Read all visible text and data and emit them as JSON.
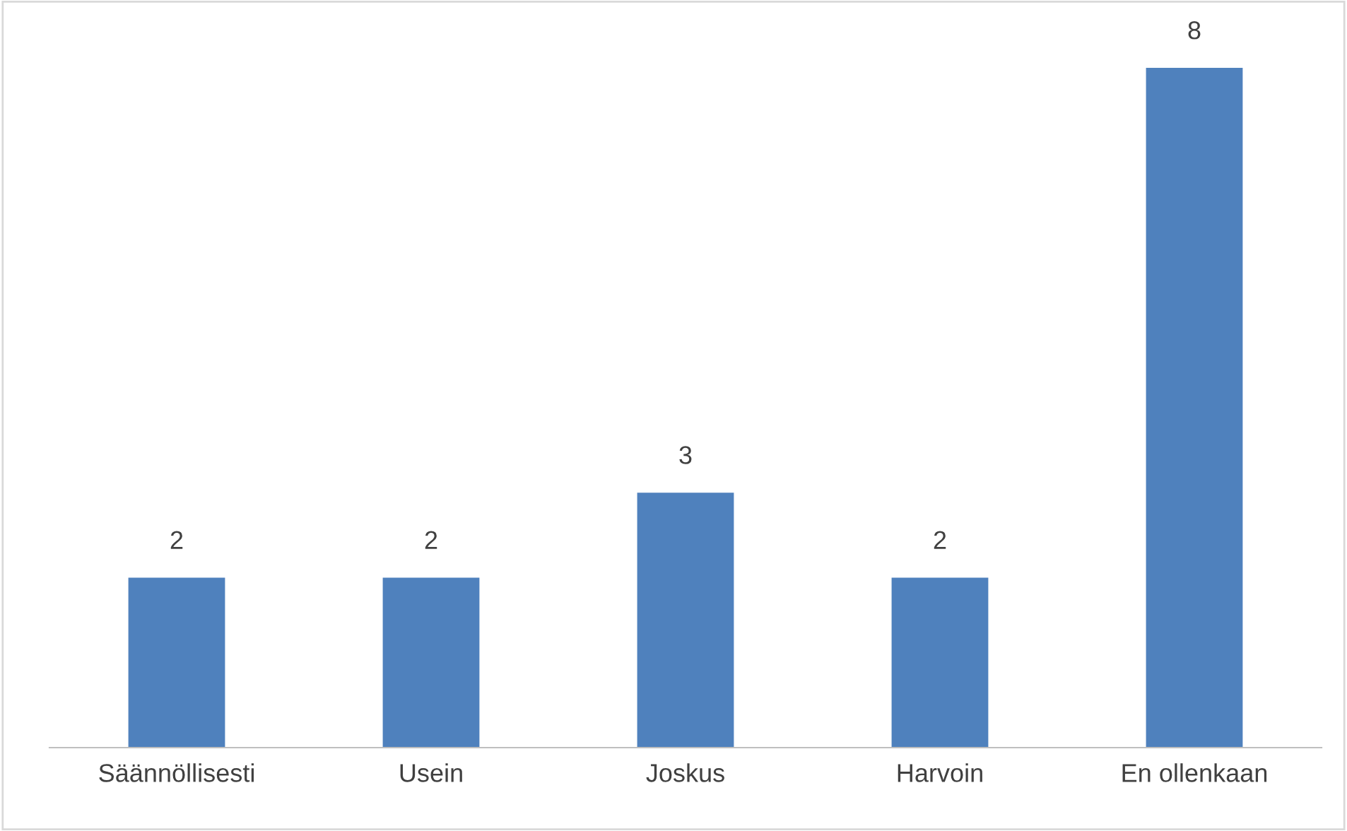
{
  "chart_data": {
    "type": "bar",
    "categories": [
      "Säännöllisesti",
      "Usein",
      "Joskus",
      "Harvoin",
      "En ollenkaan"
    ],
    "values": [
      2,
      2,
      3,
      2,
      8
    ],
    "color": "#4f81bd",
    "data_labels": true,
    "tick_labels": "x",
    "grid": false,
    "legend": false
  }
}
